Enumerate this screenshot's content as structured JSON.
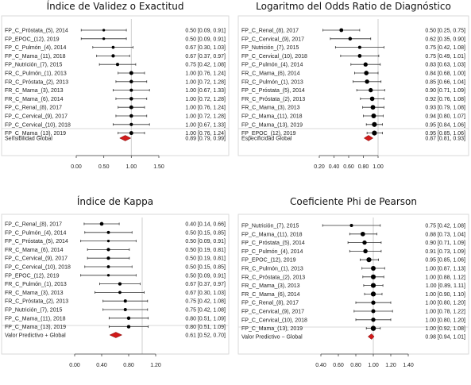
{
  "chart_data": [
    {
      "type": "forest",
      "title": "Índice de Validez o Exactitud",
      "xlim": [
        0,
        1.5
      ],
      "ticks": [
        "0.00",
        "0.50",
        "1.00",
        "1.50"
      ],
      "ref": 1.0,
      "rows": [
        {
          "label": "FP_C_Próstata_(5), 2014",
          "est": 0.5,
          "lo": 0.09,
          "hi": 0.91,
          "text": "0.50 [0.09, 0.91]"
        },
        {
          "label": "FP_EPOC_(12), 2019",
          "est": 0.5,
          "lo": 0.09,
          "hi": 0.91,
          "text": "0.50 [0.09, 0.91]"
        },
        {
          "label": "FP_C_Pulmón_(4), 2014",
          "est": 0.67,
          "lo": 0.3,
          "hi": 1.03,
          "text": "0.67 [0.30, 1.03]"
        },
        {
          "label": "FP_C_Mama_(11), 2018",
          "est": 0.67,
          "lo": 0.37,
          "hi": 0.97,
          "text": "0.67 [0.37, 0.97]"
        },
        {
          "label": "FP_Nutrición_(7), 2015",
          "est": 0.75,
          "lo": 0.42,
          "hi": 1.08,
          "text": "0.75 [0.42, 1.08]"
        },
        {
          "label": "FR_C_Pulmón_(1), 2013",
          "est": 1.0,
          "lo": 0.76,
          "hi": 1.24,
          "text": "1.00 [0.76, 1.24]"
        },
        {
          "label": "FR_C_Próstata_(2), 2013",
          "est": 1.0,
          "lo": 0.72,
          "hi": 1.28,
          "text": "1.00 [0.72, 1.28]"
        },
        {
          "label": "FR_C_Mama_(3), 2013",
          "est": 1.0,
          "lo": 0.67,
          "hi": 1.33,
          "text": "1.00 [0.67, 1.33]"
        },
        {
          "label": "FR_C_Mama_(6), 2014",
          "est": 1.0,
          "lo": 0.72,
          "hi": 1.28,
          "text": "1.00 [0.72, 1.28]"
        },
        {
          "label": "FP_C_Renal_(8), 2017",
          "est": 1.0,
          "lo": 0.76,
          "hi": 1.24,
          "text": "1.00 [0.76, 1.24]"
        },
        {
          "label": "FP_C_Cervical_(9), 2017",
          "est": 1.0,
          "lo": 0.72,
          "hi": 1.28,
          "text": "1.00 [0.72, 1.28]"
        },
        {
          "label": "FP_C_Cervical_(10), 2018",
          "est": 1.0,
          "lo": 0.67,
          "hi": 1.33,
          "text": "1.00 [0.67, 1.33]"
        },
        {
          "label": "FP_C_Mama_(13), 2019",
          "est": 1.0,
          "lo": 0.76,
          "hi": 1.24,
          "text": "1.00 [0.76, 1.24]"
        }
      ],
      "summary": {
        "label": "Sensibilidad Global",
        "est": 0.89,
        "lo": 0.79,
        "hi": 0.99,
        "text": "0.89 [0.79, 0.99]"
      }
    },
    {
      "type": "forest",
      "title": "Logaritmo del Odds Ratio de Diagnóstico",
      "xlim": [
        0.2,
        1.0
      ],
      "ticks": [
        "0.20",
        "0.40",
        "0.60",
        "0.80",
        "1.00"
      ],
      "ref": 1.0,
      "rows": [
        {
          "label": "FP_C_Renal_(8), 2017",
          "est": 0.5,
          "lo": 0.25,
          "hi": 0.75,
          "text": "0.50 [0.25, 0.75]"
        },
        {
          "label": "FP_C_Cervical_(9), 2017",
          "est": 0.62,
          "lo": 0.35,
          "hi": 0.9,
          "text": "0.62 [0.35, 0.90]"
        },
        {
          "label": "FP_Nutrición_(7), 2015",
          "est": 0.75,
          "lo": 0.42,
          "hi": 1.08,
          "text": "0.75 [0.42, 1.08]"
        },
        {
          "label": "FP_C_Cervical_(10), 2018",
          "est": 0.75,
          "lo": 0.49,
          "hi": 1.01,
          "text": "0.75 [0.49, 1.01]"
        },
        {
          "label": "FP_C_Pulmón_(4), 2014",
          "est": 0.83,
          "lo": 0.63,
          "hi": 1.03,
          "text": "0.83 [0.63, 1.03]"
        },
        {
          "label": "FR_C_Mama_(6), 2014",
          "est": 0.84,
          "lo": 0.68,
          "hi": 1.0,
          "text": "0.84 [0.68, 1.00]"
        },
        {
          "label": "FR_C_Pulmón_(1), 2013",
          "est": 0.85,
          "lo": 0.66,
          "hi": 1.04,
          "text": "0.85 [0.66, 1.04]"
        },
        {
          "label": "FP_C_Próstata_(5), 2014",
          "est": 0.9,
          "lo": 0.71,
          "hi": 1.09,
          "text": "0.90 [0.71, 1.09]"
        },
        {
          "label": "FR_C_Próstata_(2), 2013",
          "est": 0.92,
          "lo": 0.76,
          "hi": 1.08,
          "text": "0.92 [0.76, 1.08]"
        },
        {
          "label": "FR_C_Mama_(3), 2013",
          "est": 0.93,
          "lo": 0.79,
          "hi": 1.08,
          "text": "0.93 [0.79, 1.08]"
        },
        {
          "label": "FP_C_Mama_(11), 2018",
          "est": 0.94,
          "lo": 0.8,
          "hi": 1.07,
          "text": "0.94 [0.80, 1.07]"
        },
        {
          "label": "FP_C_Mama_(13), 2019",
          "est": 0.95,
          "lo": 0.84,
          "hi": 1.06,
          "text": "0.95 [0.84, 1.06]"
        },
        {
          "label": "FP_EPOC_(12), 2019",
          "est": 0.95,
          "lo": 0.85,
          "hi": 1.06,
          "text": "0.95 [0.85, 1.06]"
        }
      ],
      "summary": {
        "label": "Especificidad Global",
        "est": 0.87,
        "lo": 0.81,
        "hi": 0.93,
        "text": "0.87 [0.81, 0.93]"
      }
    },
    {
      "type": "forest",
      "title": "Índice de Kappa",
      "xlim": [
        0,
        1.2
      ],
      "ticks": [
        "0.00",
        "0.40",
        "0.80",
        "1.20"
      ],
      "ref": 1.0,
      "rows": [
        {
          "label": "FP_C_Renal_(8), 2017",
          "est": 0.4,
          "lo": 0.14,
          "hi": 0.66,
          "text": "0.40 [0.14, 0.66]"
        },
        {
          "label": "FP_C_Pulmón_(4), 2014",
          "est": 0.5,
          "lo": 0.15,
          "hi": 0.85,
          "text": "0.50 [0.15, 0.85]"
        },
        {
          "label": "FP_C_Próstata_(5), 2014",
          "est": 0.5,
          "lo": 0.09,
          "hi": 0.91,
          "text": "0.50 [0.09, 0.91]"
        },
        {
          "label": "FR_C_Mama_(6), 2014",
          "est": 0.5,
          "lo": 0.19,
          "hi": 0.81,
          "text": "0.50 [0.19, 0.81]"
        },
        {
          "label": "FP_C_Cervical_(9), 2017",
          "est": 0.5,
          "lo": 0.19,
          "hi": 0.81,
          "text": "0.50 [0.19, 0.81]"
        },
        {
          "label": "FP_C_Cervical_(10), 2018",
          "est": 0.5,
          "lo": 0.15,
          "hi": 0.85,
          "text": "0.50 [0.15, 0.85]"
        },
        {
          "label": "FP_EPOC_(12), 2019",
          "est": 0.5,
          "lo": 0.09,
          "hi": 0.91,
          "text": "0.50 [0.09, 0.91]"
        },
        {
          "label": "FR_C_Pulmón_(1), 2013",
          "est": 0.67,
          "lo": 0.37,
          "hi": 0.97,
          "text": "0.67 [0.37, 0.97]"
        },
        {
          "label": "FR_C_Mama_(3), 2013",
          "est": 0.67,
          "lo": 0.3,
          "hi": 1.03,
          "text": "0.67 [0.30, 1.03]"
        },
        {
          "label": "FR_C_Próstata_(2), 2013",
          "est": 0.75,
          "lo": 0.42,
          "hi": 1.08,
          "text": "0.75 [0.42, 1.08]"
        },
        {
          "label": "FP_Nutrición_(7), 2015",
          "est": 0.75,
          "lo": 0.42,
          "hi": 1.08,
          "text": "0.75 [0.42, 1.08]"
        },
        {
          "label": "FP_C_Mama_(11), 2018",
          "est": 0.8,
          "lo": 0.51,
          "hi": 1.09,
          "text": "0.80 [0.51, 1.09]"
        },
        {
          "label": "FP_C_Mama_(13), 2019",
          "est": 0.8,
          "lo": 0.51,
          "hi": 1.09,
          "text": "0.80 [0.51, 1.09]"
        }
      ],
      "summary": {
        "label": "Valor Predictivo + Global",
        "est": 0.61,
        "lo": 0.52,
        "hi": 0.7,
        "text": "0.61 [0.52, 0.70]"
      }
    },
    {
      "type": "forest",
      "title": "Coeficiente Phi de Pearson",
      "xlim": [
        0.4,
        1.4
      ],
      "ticks": [
        "0.40",
        "0.60",
        "0.80",
        "1.00",
        "1.20",
        "1.40"
      ],
      "ref": 1.0,
      "rows": [
        {
          "label": "FP_Nutrición_(7), 2015",
          "est": 0.75,
          "lo": 0.42,
          "hi": 1.08,
          "text": "0.75 [0.42, 1.08]"
        },
        {
          "label": "FP_C_Mama_(11), 2018",
          "est": 0.88,
          "lo": 0.73,
          "hi": 1.04,
          "text": "0.88 [0.73, 1.04]"
        },
        {
          "label": "FP_C_Próstata_(5), 2014",
          "est": 0.9,
          "lo": 0.71,
          "hi": 1.09,
          "text": "0.90 [0.71, 1.09]"
        },
        {
          "label": "FP_C_Pulmón_(4), 2014",
          "est": 0.91,
          "lo": 0.73,
          "hi": 1.09,
          "text": "0.91 [0.73, 1.09]"
        },
        {
          "label": "FP_EPOC_(12), 2019",
          "est": 0.95,
          "lo": 0.85,
          "hi": 1.06,
          "text": "0.95 [0.85, 1.06]"
        },
        {
          "label": "FR_C_Pulmón_(1), 2013",
          "est": 1.0,
          "lo": 0.87,
          "hi": 1.13,
          "text": "1.00 [0.87, 1.13]"
        },
        {
          "label": "FR_C_Próstata_(2), 2013",
          "est": 1.0,
          "lo": 0.88,
          "hi": 1.12,
          "text": "1.00 [0.88, 1.12]"
        },
        {
          "label": "FR_C_Mama_(3), 2013",
          "est": 1.0,
          "lo": 0.89,
          "hi": 1.11,
          "text": "1.00 [0.89, 1.11]"
        },
        {
          "label": "FR_C_Mama_(6), 2014",
          "est": 1.0,
          "lo": 0.9,
          "hi": 1.1,
          "text": "1.00 [0.90, 1.10]"
        },
        {
          "label": "FP_C_Renal_(8), 2017",
          "est": 1.0,
          "lo": 0.8,
          "hi": 1.2,
          "text": "1.00 [0.80, 1.20]"
        },
        {
          "label": "FP_C_Cervical_(9), 2017",
          "est": 1.0,
          "lo": 0.78,
          "hi": 1.22,
          "text": "1.00 [0.78, 1.22]"
        },
        {
          "label": "FP_C_Cervical_(10), 2018",
          "est": 1.0,
          "lo": 0.8,
          "hi": 1.2,
          "text": "1.00 [0.80, 1.20]"
        },
        {
          "label": "FP_C_Mama_(13), 2019",
          "est": 1.0,
          "lo": 0.92,
          "hi": 1.08,
          "text": "1.00 [0.92, 1.08]"
        }
      ],
      "summary": {
        "label": "Valor Predictivo − Global",
        "est": 0.98,
        "lo": 0.94,
        "hi": 1.01,
        "text": "0.98 [0.94, 1.01]"
      }
    }
  ],
  "colors": {
    "summary": "#d11a1a",
    "line": "#333333",
    "ref": "#cfcfcf",
    "frame": "#d9d9d9"
  }
}
